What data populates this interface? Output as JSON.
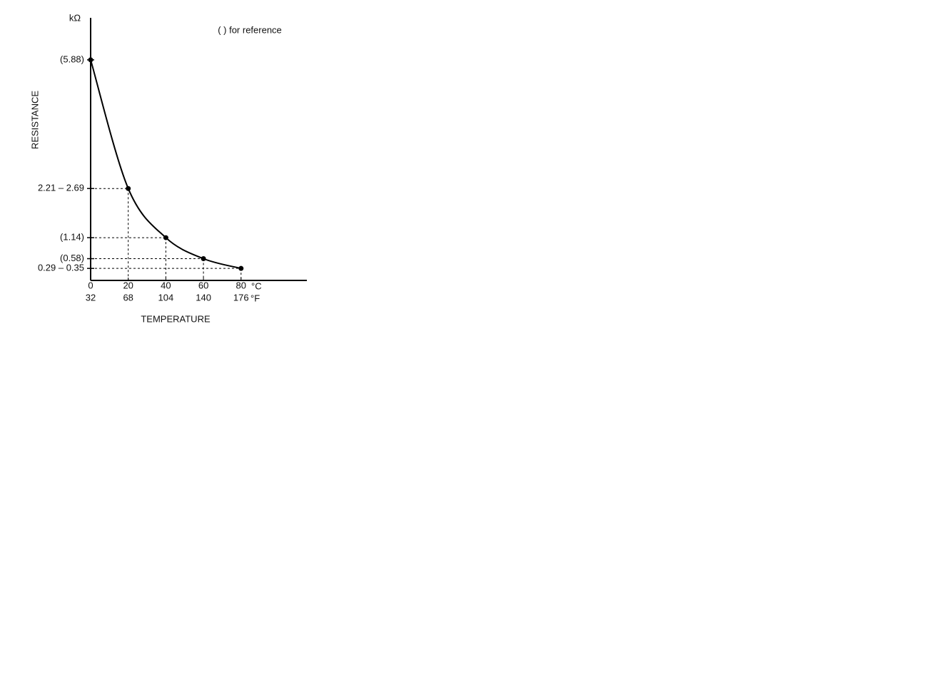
{
  "chart_data": {
    "type": "line",
    "title": "( ) for reference",
    "y_unit": "kΩ",
    "ylabel": "RESISTANCE",
    "xlabel": "TEMPERATURE",
    "x_units": [
      "°C",
      "°F"
    ],
    "x": [
      0,
      20,
      40,
      60,
      80
    ],
    "series": [
      {
        "color": "#000000",
        "values": [
          5.88,
          2.45,
          1.14,
          0.58,
          0.32
        ]
      }
    ],
    "xlim": [
      0,
      115
    ],
    "xticks": [
      0,
      20,
      40,
      60,
      80
    ],
    "x2lim": [
      32,
      239
    ],
    "x2ticks": [
      32,
      68,
      104,
      140,
      176
    ],
    "ylim": [
      0,
      7
    ],
    "yticks": [
      {
        "value": 5.88,
        "label": "(5.88)"
      },
      {
        "value": 2.45,
        "label": "2.21 – 2.69"
      },
      {
        "value": 1.14,
        "label": "(1.14)"
      },
      {
        "value": 0.58,
        "label": "(0.58)"
      },
      {
        "value": 0.32,
        "label": "0.29 – 0.35"
      }
    ]
  }
}
